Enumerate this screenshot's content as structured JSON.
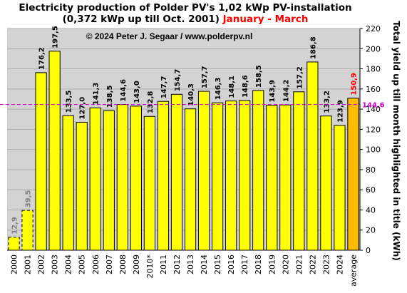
{
  "title": {
    "line1": "Electricity production  of Polder  PV's  1,02 kWp PV-installation",
    "line2": "(0,372 kWp up till Oct. 2001)",
    "period": "January - March"
  },
  "copyright": "© 2024 Peter J. Segaar / www.polderpv.nl",
  "colors": {
    "bar": "#ffff00",
    "average_bar": "#ffbb00",
    "plot_bg": "#d3d3d3",
    "average_line": "#cc00cc",
    "average_label": "#cc00cc",
    "partial_label": "#808080",
    "average_value_label": "#ff0000"
  },
  "chart_data": {
    "type": "bar",
    "categories": [
      "2000",
      "2001",
      "2002",
      "2003",
      "2004",
      "2005",
      "2006",
      "2007",
      "2008",
      "2009",
      "2010*",
      "2011",
      "2012",
      "2013",
      "2014",
      "2015",
      "2016",
      "2017",
      "2018",
      "2019",
      "2020",
      "2021",
      "2022",
      "2023",
      "2024",
      "average"
    ],
    "values": [
      12.9,
      39.5,
      176.2,
      197.5,
      133.5,
      127.0,
      141.3,
      138.5,
      144.6,
      143.0,
      132.8,
      147.7,
      154.7,
      140.3,
      157.7,
      146.3,
      148.1,
      148.6,
      158.5,
      143.9,
      144.2,
      157.2,
      186.8,
      133.2,
      123.9,
      150.9
    ],
    "value_labels": [
      "12,9",
      "39,5",
      "176,2",
      "197,5",
      "133,5",
      "127,0",
      "141,3",
      "138,5",
      "144,6",
      "143,0",
      "132,8",
      "147,7",
      "154,7",
      "140,3",
      "157,7",
      "146,3",
      "148,1",
      "148,6",
      "158,5",
      "143,9",
      "144,2",
      "157,2",
      "186,8",
      "133,2",
      "123,9",
      "150,9"
    ],
    "partial_years": [
      "2000",
      "2001"
    ],
    "average_line": {
      "value": 144.6,
      "label": "144,6"
    },
    "ylabel": "Total yield up till month highlighted in title (kWh)",
    "ylim": [
      0,
      220
    ],
    "yticks": [
      0,
      20,
      40,
      60,
      80,
      100,
      120,
      140,
      160,
      180,
      200,
      220
    ],
    "grid": true
  }
}
